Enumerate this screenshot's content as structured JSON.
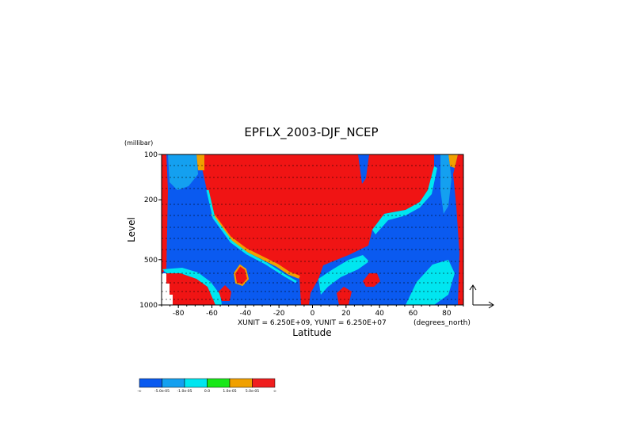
{
  "chart_data": {
    "type": "heatmap",
    "title": "EPFLX_2003-DJF_NCEP",
    "xlabel": "Latitude",
    "ylabel": "Level",
    "y_unit": "(millibar)",
    "x_unit": "(degrees_north)",
    "vector_scale_text": "XUNIT = 6.250E+09, YUNIT = 6.250E+07",
    "xlim": [
      -90,
      90
    ],
    "ylim": [
      1000,
      100
    ],
    "y_scale": "log",
    "x_ticks": [
      {
        "value": -80,
        "label": "-80"
      },
      {
        "value": -60,
        "label": "-60"
      },
      {
        "value": -40,
        "label": "-40"
      },
      {
        "value": -20,
        "label": "-20"
      },
      {
        "value": 0,
        "label": "0"
      },
      {
        "value": 20,
        "label": "20"
      },
      {
        "value": 40,
        "label": "40"
      },
      {
        "value": 60,
        "label": "60"
      },
      {
        "value": 80,
        "label": "80"
      }
    ],
    "y_ticks": [
      {
        "value": 100,
        "label": "100"
      },
      {
        "value": 200,
        "label": "200"
      },
      {
        "value": 500,
        "label": "500"
      },
      {
        "value": 1000,
        "label": "1000"
      }
    ],
    "colorbar": {
      "colors": [
        "#0a5af0",
        "#14a0f0",
        "#00e6f0",
        "#18e818",
        "#f0a000",
        "#f01e1e",
        "#f01414"
      ],
      "labels": [
        "-∞",
        "-5.0e-05",
        "-1.0e-05",
        "0.0",
        "1.0e-05",
        "5.0e-05",
        "∞"
      ]
    },
    "categories": [
      "blue",
      "lightblue",
      "cyan",
      "green",
      "orange",
      "red"
    ]
  }
}
